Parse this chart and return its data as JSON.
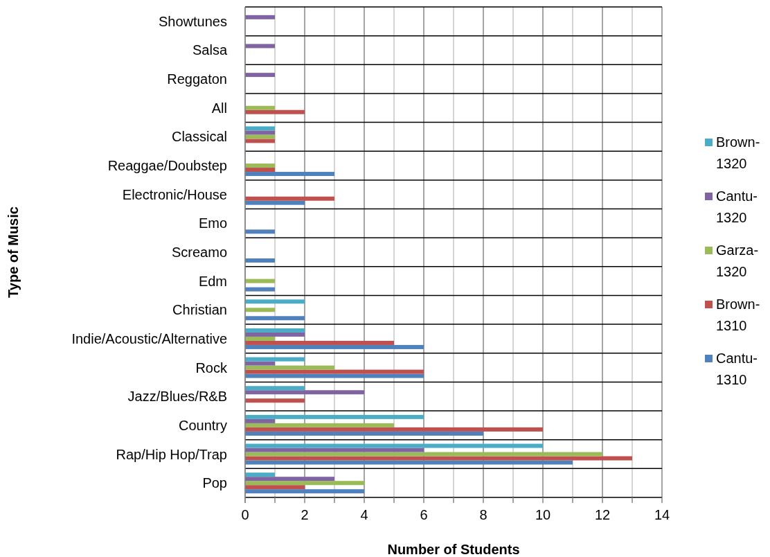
{
  "chart_data": {
    "type": "bar",
    "orientation": "horizontal",
    "xlabel": "Number of Students",
    "ylabel": "Type of Music",
    "categories": [
      "Showtunes",
      "Salsa",
      "Reggaton",
      "All",
      "Classical",
      "Reaggae/Doubstep",
      "Electronic/House",
      "Emo",
      "Screamo",
      "Edm",
      "Christian",
      "Indie/Acoustic/Alternative",
      "Rock",
      "Jazz/Blues/R&B",
      "Country",
      "Rap/Hip Hop/Trap",
      "Pop"
    ],
    "series": [
      {
        "name": "Cantu-1310",
        "color": "#4f81bd",
        "values": [
          null,
          null,
          null,
          null,
          null,
          3,
          2,
          1,
          1,
          1,
          2,
          6,
          6,
          null,
          8,
          11,
          4
        ]
      },
      {
        "name": "Brown-1310",
        "color": "#c0504d",
        "values": [
          null,
          null,
          null,
          2,
          1,
          1,
          3,
          null,
          null,
          null,
          null,
          5,
          6,
          2,
          10,
          13,
          2
        ]
      },
      {
        "name": "Garza-1320",
        "color": "#9bbb59",
        "values": [
          null,
          null,
          null,
          1,
          1,
          1,
          null,
          null,
          null,
          1,
          1,
          1,
          3,
          null,
          5,
          12,
          4
        ]
      },
      {
        "name": "Cantu-1320",
        "color": "#8064a2",
        "values": [
          1,
          1,
          1,
          null,
          1,
          null,
          null,
          null,
          null,
          null,
          null,
          2,
          1,
          4,
          1,
          6,
          3
        ]
      },
      {
        "name": "Brown-1320",
        "color": "#4bacc6",
        "values": [
          null,
          null,
          null,
          null,
          1,
          null,
          null,
          null,
          null,
          null,
          2,
          2,
          2,
          2,
          6,
          10,
          1
        ]
      }
    ],
    "xlim": [
      0,
      14
    ],
    "xticks": [
      0,
      {
        "value": 1,
        "label": null
      },
      2,
      {
        "value": 3,
        "label": null
      },
      4,
      {
        "value": 5,
        "label": null
      },
      6,
      {
        "value": 7,
        "label": null
      },
      8,
      {
        "value": 9,
        "label": null
      },
      10,
      {
        "value": 11,
        "label": null
      },
      12,
      {
        "value": 13,
        "label": null
      },
      14
    ],
    "grid": true,
    "legend": "right"
  }
}
